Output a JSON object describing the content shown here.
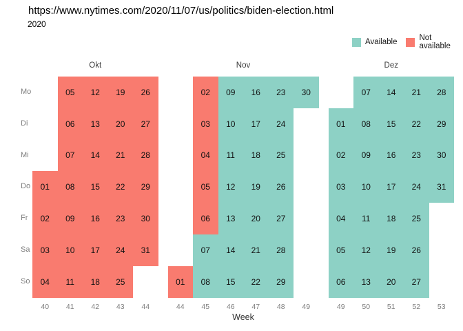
{
  "page": {
    "url_text": "https://www.nytimes.com/2020/11/07/us/politics/biden-election.html",
    "year_label": "2020"
  },
  "colors": {
    "available": "#8DD1C5",
    "not_available": "#F97B6F",
    "axis_text": "#7E7E7E",
    "month_text": "#3C3C3C",
    "date_text": "#111111"
  },
  "legend": {
    "available_label": "Available",
    "not_available_label": "Not available"
  },
  "axis": {
    "x_title": "Week"
  },
  "chart_data": {
    "type": "heatmap",
    "subtype": "calendar-availability",
    "year": "2020",
    "xlabel": "Week",
    "legend_entries": [
      "Available",
      "Not available"
    ],
    "legend_position": "top-right",
    "status_key": {
      "av": "Available",
      "na": "Not available"
    },
    "day_rows": [
      "Mo",
      "Di",
      "Mi",
      "Do",
      "Fr",
      "Sa",
      "So"
    ],
    "months": [
      {
        "label": "Okt",
        "weeks": [
          "40",
          "41",
          "42",
          "43",
          "44"
        ],
        "grid": [
          [
            null,
            {
              "d": "05",
              "s": "na"
            },
            {
              "d": "12",
              "s": "na"
            },
            {
              "d": "19",
              "s": "na"
            },
            {
              "d": "26",
              "s": "na"
            }
          ],
          [
            null,
            {
              "d": "06",
              "s": "na"
            },
            {
              "d": "13",
              "s": "na"
            },
            {
              "d": "20",
              "s": "na"
            },
            {
              "d": "27",
              "s": "na"
            }
          ],
          [
            null,
            {
              "d": "07",
              "s": "na"
            },
            {
              "d": "14",
              "s": "na"
            },
            {
              "d": "21",
              "s": "na"
            },
            {
              "d": "28",
              "s": "na"
            }
          ],
          [
            {
              "d": "01",
              "s": "na"
            },
            {
              "d": "08",
              "s": "na"
            },
            {
              "d": "15",
              "s": "na"
            },
            {
              "d": "22",
              "s": "na"
            },
            {
              "d": "29",
              "s": "na"
            }
          ],
          [
            {
              "d": "02",
              "s": "na"
            },
            {
              "d": "09",
              "s": "na"
            },
            {
              "d": "16",
              "s": "na"
            },
            {
              "d": "23",
              "s": "na"
            },
            {
              "d": "30",
              "s": "na"
            }
          ],
          [
            {
              "d": "03",
              "s": "na"
            },
            {
              "d": "10",
              "s": "na"
            },
            {
              "d": "17",
              "s": "na"
            },
            {
              "d": "24",
              "s": "na"
            },
            {
              "d": "31",
              "s": "na"
            }
          ],
          [
            {
              "d": "04",
              "s": "na"
            },
            {
              "d": "11",
              "s": "na"
            },
            {
              "d": "18",
              "s": "na"
            },
            {
              "d": "25",
              "s": "na"
            },
            null
          ]
        ]
      },
      {
        "label": "Nov",
        "weeks": [
          "44",
          "45",
          "46",
          "47",
          "48",
          "49"
        ],
        "grid": [
          [
            null,
            {
              "d": "02",
              "s": "na"
            },
            {
              "d": "09",
              "s": "av"
            },
            {
              "d": "16",
              "s": "av"
            },
            {
              "d": "23",
              "s": "av"
            },
            {
              "d": "30",
              "s": "av"
            }
          ],
          [
            null,
            {
              "d": "03",
              "s": "na"
            },
            {
              "d": "10",
              "s": "av"
            },
            {
              "d": "17",
              "s": "av"
            },
            {
              "d": "24",
              "s": "av"
            },
            null
          ],
          [
            null,
            {
              "d": "04",
              "s": "na"
            },
            {
              "d": "11",
              "s": "av"
            },
            {
              "d": "18",
              "s": "av"
            },
            {
              "d": "25",
              "s": "av"
            },
            null
          ],
          [
            null,
            {
              "d": "05",
              "s": "na"
            },
            {
              "d": "12",
              "s": "av"
            },
            {
              "d": "19",
              "s": "av"
            },
            {
              "d": "26",
              "s": "av"
            },
            null
          ],
          [
            null,
            {
              "d": "06",
              "s": "na"
            },
            {
              "d": "13",
              "s": "av"
            },
            {
              "d": "20",
              "s": "av"
            },
            {
              "d": "27",
              "s": "av"
            },
            null
          ],
          [
            null,
            {
              "d": "07",
              "s": "av"
            },
            {
              "d": "14",
              "s": "av"
            },
            {
              "d": "21",
              "s": "av"
            },
            {
              "d": "28",
              "s": "av"
            },
            null
          ],
          [
            {
              "d": "01",
              "s": "na"
            },
            {
              "d": "08",
              "s": "av"
            },
            {
              "d": "15",
              "s": "av"
            },
            {
              "d": "22",
              "s": "av"
            },
            {
              "d": "29",
              "s": "av"
            },
            null
          ]
        ]
      },
      {
        "label": "Dez",
        "weeks": [
          "49",
          "50",
          "51",
          "52",
          "53"
        ],
        "grid": [
          [
            null,
            {
              "d": "07",
              "s": "av"
            },
            {
              "d": "14",
              "s": "av"
            },
            {
              "d": "21",
              "s": "av"
            },
            {
              "d": "28",
              "s": "av"
            }
          ],
          [
            {
              "d": "01",
              "s": "av"
            },
            {
              "d": "08",
              "s": "av"
            },
            {
              "d": "15",
              "s": "av"
            },
            {
              "d": "22",
              "s": "av"
            },
            {
              "d": "29",
              "s": "av"
            }
          ],
          [
            {
              "d": "02",
              "s": "av"
            },
            {
              "d": "09",
              "s": "av"
            },
            {
              "d": "16",
              "s": "av"
            },
            {
              "d": "23",
              "s": "av"
            },
            {
              "d": "30",
              "s": "av"
            }
          ],
          [
            {
              "d": "03",
              "s": "av"
            },
            {
              "d": "10",
              "s": "av"
            },
            {
              "d": "17",
              "s": "av"
            },
            {
              "d": "24",
              "s": "av"
            },
            {
              "d": "31",
              "s": "av"
            }
          ],
          [
            {
              "d": "04",
              "s": "av"
            },
            {
              "d": "11",
              "s": "av"
            },
            {
              "d": "18",
              "s": "av"
            },
            {
              "d": "25",
              "s": "av"
            },
            null
          ],
          [
            {
              "d": "05",
              "s": "av"
            },
            {
              "d": "12",
              "s": "av"
            },
            {
              "d": "19",
              "s": "av"
            },
            {
              "d": "26",
              "s": "av"
            },
            null
          ],
          [
            {
              "d": "06",
              "s": "av"
            },
            {
              "d": "13",
              "s": "av"
            },
            {
              "d": "20",
              "s": "av"
            },
            {
              "d": "27",
              "s": "av"
            },
            null
          ]
        ]
      }
    ]
  }
}
